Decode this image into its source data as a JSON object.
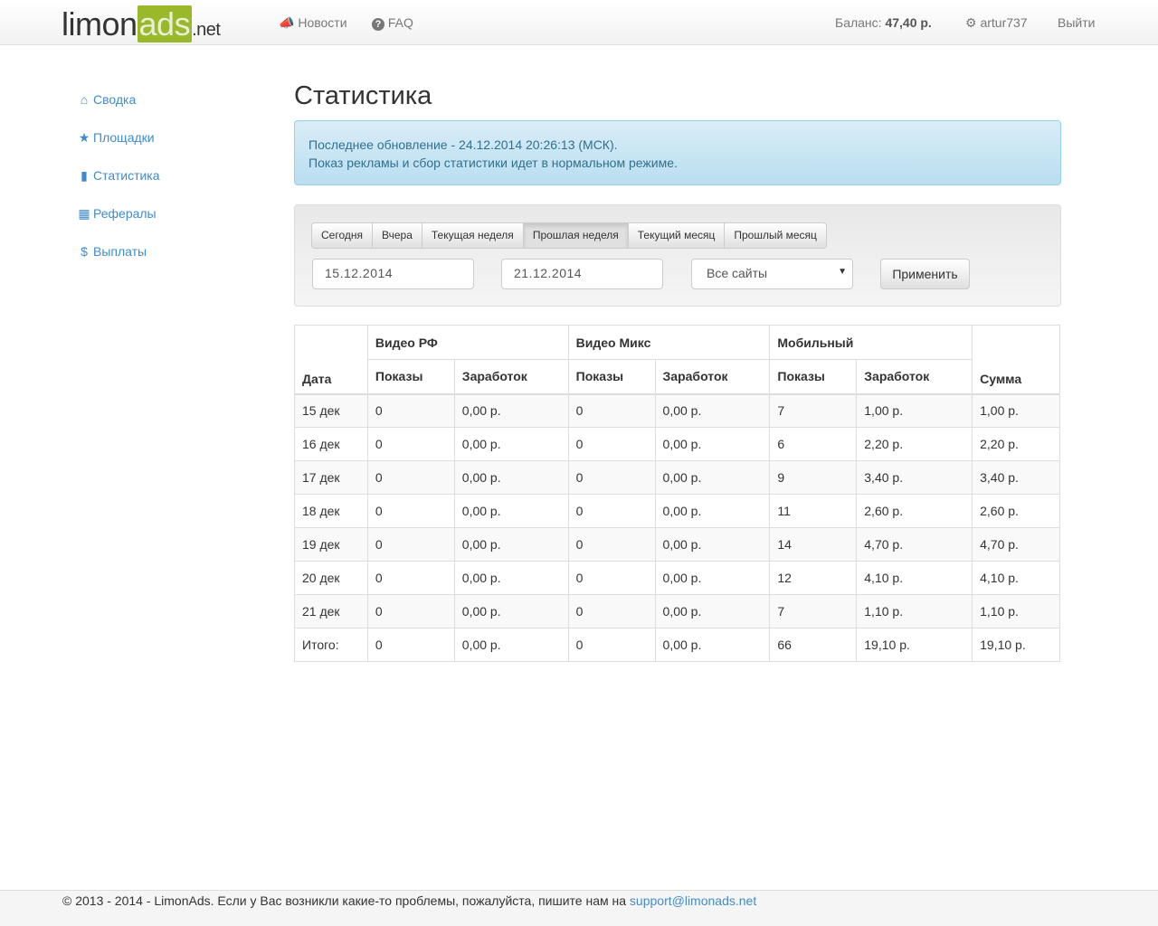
{
  "header": {
    "logo_text": "limonads.net",
    "logo_parts": [
      "limon",
      "ads",
      ".net"
    ],
    "nav": [
      {
        "icon": "bullhorn-icon",
        "label": "Новости"
      },
      {
        "icon": "question-circle-icon",
        "label": "FAQ"
      }
    ],
    "balance_label": "Баланс:",
    "balance_value": "47,40 р.",
    "user": "artur737",
    "user_icon": "gear-icon",
    "logout": "Выйти"
  },
  "sidebar": {
    "items": [
      {
        "icon": "home-icon",
        "label": "Сводка"
      },
      {
        "icon": "star-icon",
        "label": "Площадки"
      },
      {
        "icon": "bar-chart-icon",
        "label": "Статистика"
      },
      {
        "icon": "gift-icon",
        "label": "Рефералы"
      },
      {
        "icon": "dollar-icon",
        "label": "Выплаты"
      }
    ]
  },
  "page_title": "Статистика",
  "alert": {
    "line1": "Последнее обновление - 24.12.2014 20:26:13 (МСК).",
    "line2": "Показ рекламы и сбор статистики идет в нормальном режиме."
  },
  "filters": {
    "periods": [
      "Сегодня",
      "Вчера",
      "Текущая неделя",
      "Прошлая неделя",
      "Текущий месяц",
      "Прошлый месяц"
    ],
    "active_period": "Прошлая неделя",
    "date_from": "15.12.2014",
    "date_to": "21.12.2014",
    "site_select": "Все сайты",
    "apply": "Применить"
  },
  "table": {
    "date_header": "Дата",
    "groups": [
      "Видео РФ",
      "Видео Микс",
      "Мобильный"
    ],
    "sub_headers": [
      "Показы",
      "Заработок"
    ],
    "sum_header": "Сумма",
    "rows": [
      [
        "15 дек",
        "0",
        "0,00 р.",
        "0",
        "0,00 р.",
        "7",
        "1,00 р.",
        "1,00 р."
      ],
      [
        "16 дек",
        "0",
        "0,00 р.",
        "0",
        "0,00 р.",
        "6",
        "2,20 р.",
        "2,20 р."
      ],
      [
        "17 дек",
        "0",
        "0,00 р.",
        "0",
        "0,00 р.",
        "9",
        "3,40 р.",
        "3,40 р."
      ],
      [
        "18 дек",
        "0",
        "0,00 р.",
        "0",
        "0,00 р.",
        "11",
        "2,60 р.",
        "2,60 р."
      ],
      [
        "19 дек",
        "0",
        "0,00 р.",
        "0",
        "0,00 р.",
        "14",
        "4,70 р.",
        "4,70 р."
      ],
      [
        "20 дек",
        "0",
        "0,00 р.",
        "0",
        "0,00 р.",
        "12",
        "4,10 р.",
        "4,10 р."
      ],
      [
        "21 дек",
        "0",
        "0,00 р.",
        "0",
        "0,00 р.",
        "7",
        "1,10 р.",
        "1,10 р."
      ],
      [
        "Итого:",
        "0",
        "0,00 р.",
        "0",
        "0,00 р.",
        "66",
        "19,10 р.",
        "19,10 р."
      ]
    ]
  },
  "footer": {
    "text": "© 2013 - 2014 - LimonAds. Если у Вас возникли какие-то проблемы, пожалуйста, пишите нам на ",
    "email": "support@limonads.net"
  }
}
